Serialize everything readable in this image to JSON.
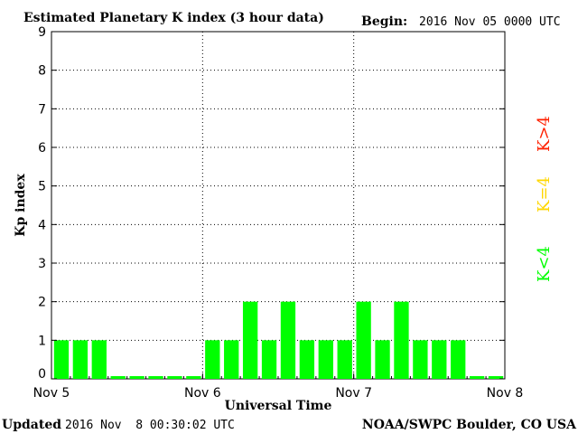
{
  "header": {
    "title": "Estimated Planetary K index (3 hour data)",
    "begin_label": "Begin:",
    "begin_value": "2016 Nov 05 0000 UTC"
  },
  "footer": {
    "updated_label": "Updated",
    "updated_value": "2016 Nov  8 00:30:02 UTC",
    "credit": "NOAA/SWPC Boulder, CO USA"
  },
  "legend": [
    {
      "label": "K>4",
      "color": "#ff2000"
    },
    {
      "label": "K=4",
      "color": "#ffd700"
    },
    {
      "label": "K<4",
      "color": "#00ff00"
    }
  ],
  "chart_data": {
    "type": "bar",
    "title": "Estimated Planetary K index (3 hour data)",
    "xlabel": "Universal Time",
    "ylabel": "Kp index",
    "ylim": [
      0,
      9
    ],
    "y_ticks": [
      0,
      1,
      2,
      3,
      4,
      5,
      6,
      7,
      8,
      9
    ],
    "x_ticks": [
      "Nov 5",
      "Nov 6",
      "Nov 7",
      "Nov 8"
    ],
    "grid": true,
    "bar_color": "#00ff00",
    "values": [
      1,
      1,
      1,
      0,
      0,
      0,
      0,
      0,
      1,
      1,
      2,
      1,
      2,
      1,
      1,
      1,
      2,
      1,
      2,
      1,
      1,
      1,
      0,
      0
    ]
  }
}
